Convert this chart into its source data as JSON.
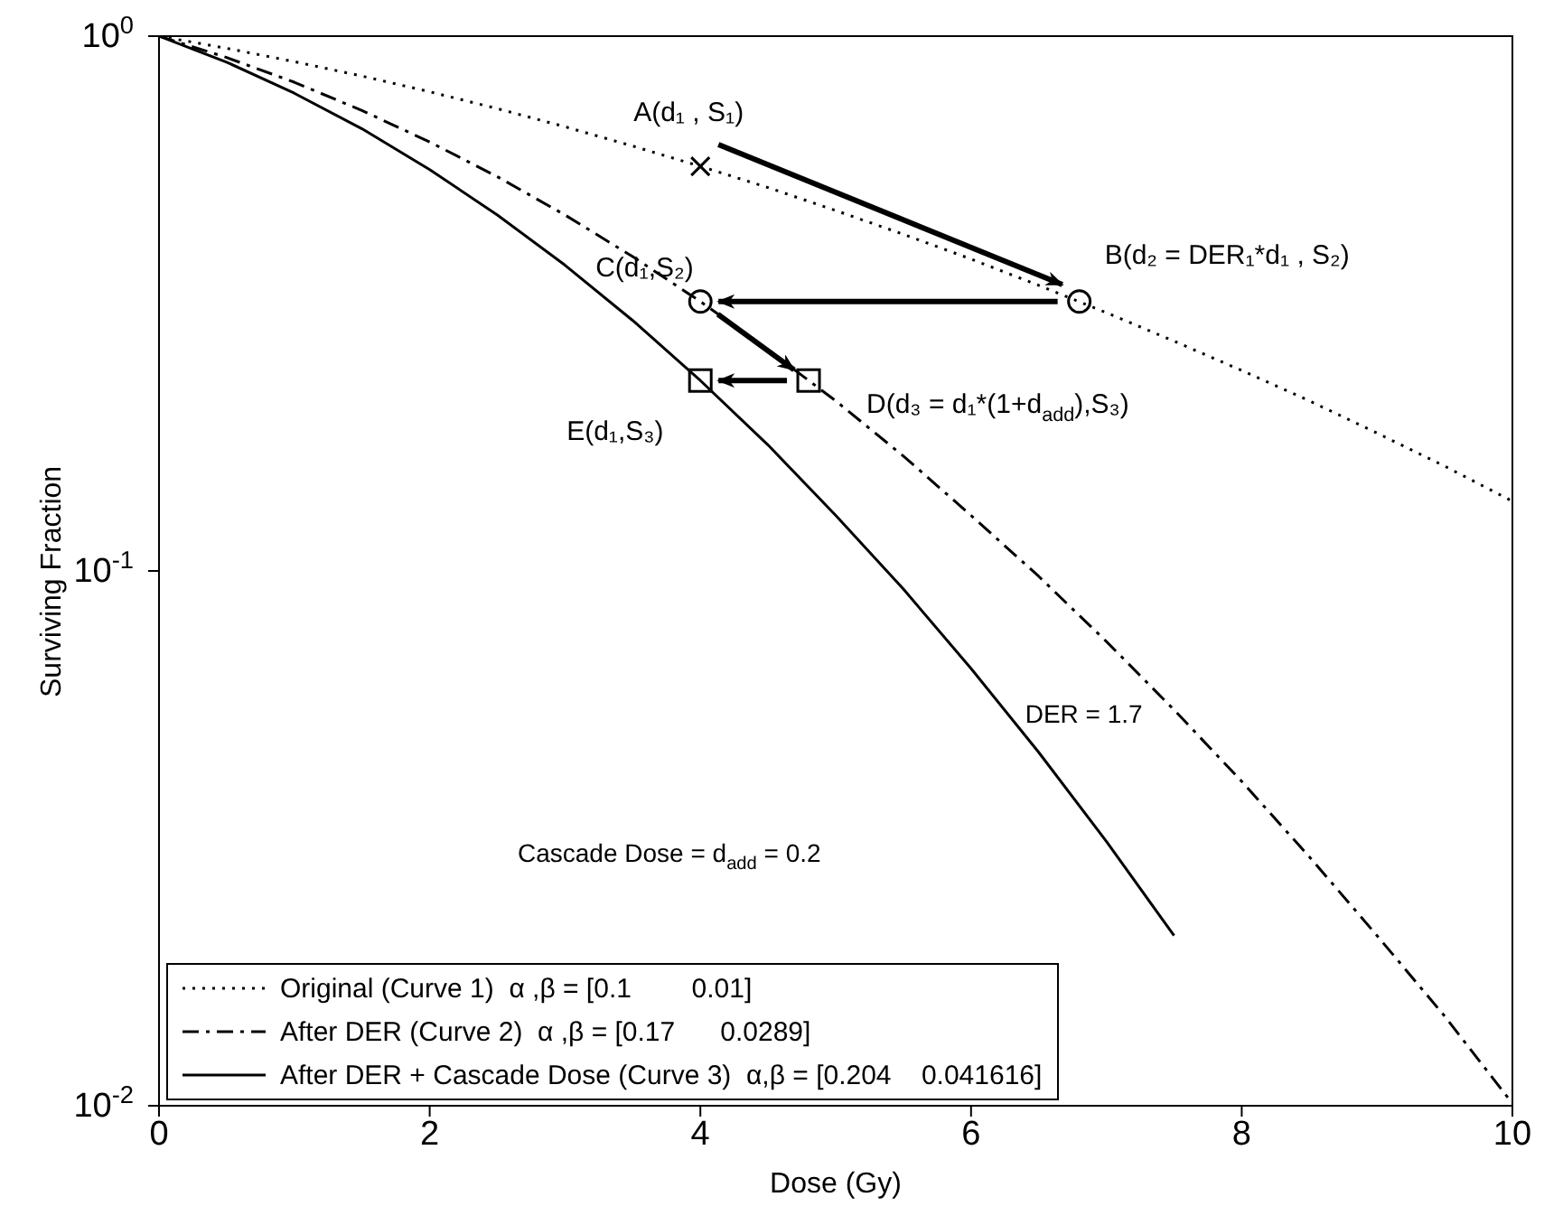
{
  "chart_data": {
    "type": "line",
    "xlabel": "Dose (Gy)",
    "ylabel": "Surviving Fraction",
    "log": "y",
    "grid": false,
    "legend": "bottom left",
    "xlim": [
      0,
      10
    ],
    "xticks": [
      0,
      2,
      4,
      6,
      8,
      10
    ],
    "ylim": [
      0.01,
      1
    ],
    "yticks": [
      {
        "value": 1,
        "label": "10$^{0}$"
      },
      {
        "value": 0.1,
        "label": "10$^{-1}$"
      },
      {
        "value": 0.01,
        "label": "10$^{-2}$"
      }
    ],
    "series": [
      {
        "name": "Original (Curve 1)  α ,β = [0.1        0.01]",
        "color": "#000000",
        "line_style": "dotted",
        "marker": "none",
        "x": [
          0,
          0.5,
          1,
          1.5,
          2,
          2.5,
          3,
          3.5,
          4,
          4.5,
          5,
          5.5,
          6,
          6.5,
          7,
          7.5,
          8,
          8.5,
          9,
          9.5,
          10
        ],
        "values": [
          1,
          0.949,
          0.896,
          0.842,
          0.787,
          0.732,
          0.677,
          0.623,
          0.571,
          0.521,
          0.472,
          0.426,
          0.383,
          0.342,
          0.304,
          0.269,
          0.237,
          0.208,
          0.181,
          0.157,
          0.135
        ]
      },
      {
        "name": "After DER (Curve 2)  α ,β = [0.17      0.0289]",
        "color": "#000000",
        "line_style": "dashed",
        "marker": "none",
        "x": [
          0,
          0.5,
          1,
          1.5,
          2,
          2.5,
          3,
          3.5,
          4,
          4.5,
          5,
          5.5,
          6,
          6.5,
          7,
          7.5,
          8,
          8.5,
          9,
          9.5,
          10
        ],
        "values": [
          1,
          0.912,
          0.82,
          0.726,
          0.634,
          0.546,
          0.463,
          0.387,
          0.319,
          0.259,
          0.208,
          0.164,
          0.127,
          0.0977,
          0.0738,
          0.055,
          0.0404,
          0.0292,
          0.0208,
          0.0147,
          0.0101
        ]
      },
      {
        "name": "After DER + Cascade Dose (Curve 3)  α,β = [0.204    0.041616]",
        "color": "#000000",
        "line_style": "solid",
        "marker": "none",
        "x": [
          0,
          0.5,
          1,
          1.5,
          2,
          2.5,
          3,
          3.5,
          4,
          4.5,
          5,
          5.5,
          6,
          6.5,
          7,
          7.5
        ],
        "values": [
          1,
          0.894,
          0.782,
          0.671,
          0.563,
          0.463,
          0.373,
          0.294,
          0.227,
          0.172,
          0.127,
          0.0925,
          0.0657,
          0.0458,
          0.0312,
          0.0208
        ]
      },
      {
        "type": "scatter",
        "color": "#000000",
        "marker": "cross",
        "x": [
          4
        ],
        "values": [
          0.571
        ]
      },
      {
        "type": "scatter",
        "color": "#000000",
        "marker": "circle",
        "x": [
          6.8,
          4
        ],
        "values": [
          0.319,
          0.319
        ]
      },
      {
        "type": "scatter",
        "color": "#000000",
        "marker": "square",
        "x": [
          4.8,
          4
        ],
        "values": [
          0.227,
          0.227
        ]
      }
    ],
    "annotations": [
      {
        "text": "A(d₁ , S₁)",
        "x": 4,
        "y": 0.571
      },
      {
        "text": "B(d₂ = DER₁*d₁ , S₂)",
        "x": 6.8,
        "y": 0.319
      },
      {
        "text": "C(d₁,S₂)",
        "x": 4,
        "y": 0.319
      },
      {
        "text": "D(d₃ = d₁*(1+d$_{add}$),S₃)",
        "x": 4.8,
        "y": 0.227
      },
      {
        "text": "E(d₁,S₃)",
        "x": 4,
        "y": 0.227
      },
      "DER = 1.7",
      "Cascade Dose = d$_{add}$ = 0.2"
    ]
  }
}
